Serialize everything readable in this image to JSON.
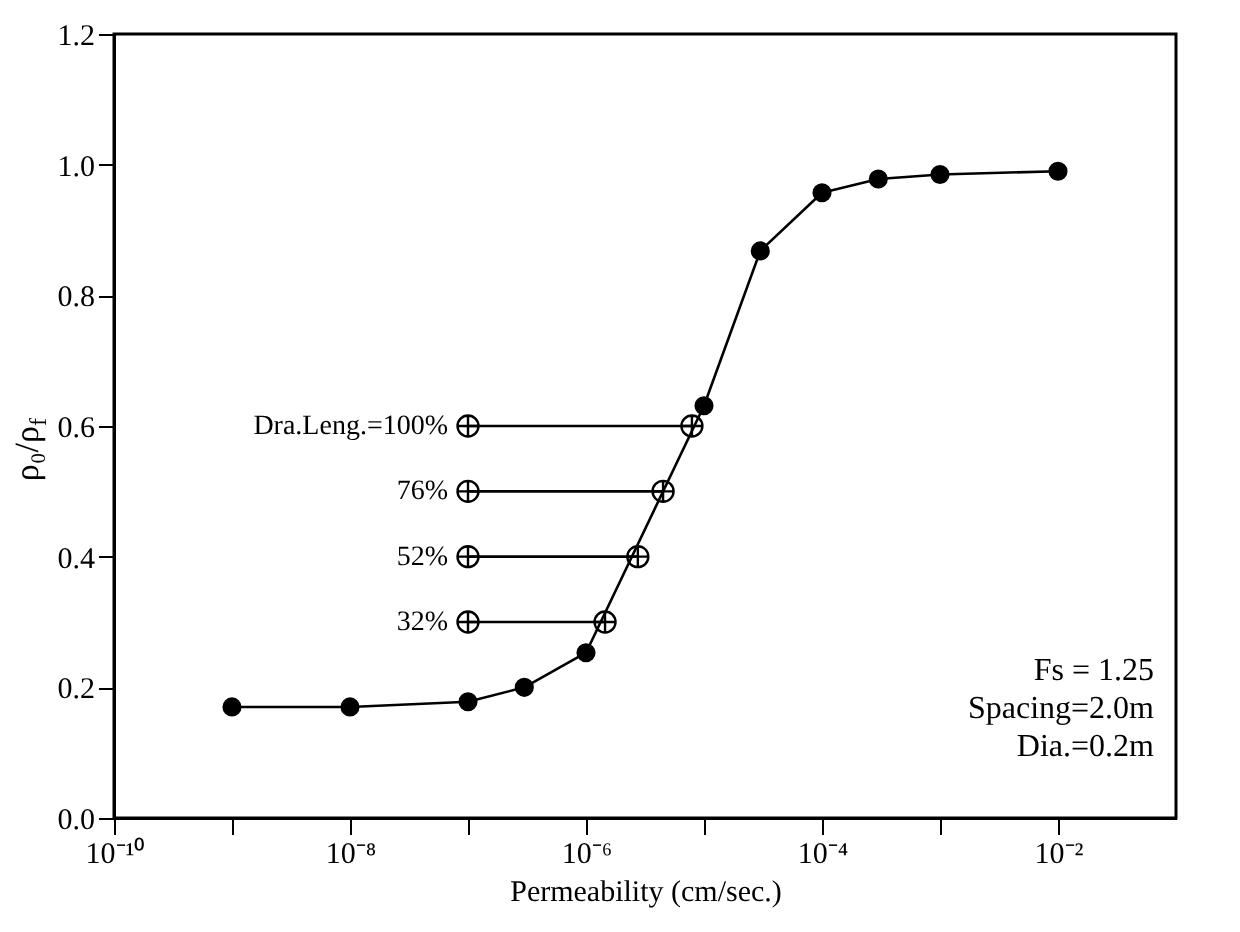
{
  "chart_data": {
    "type": "line",
    "xlabel": "Permeability (cm/sec.)",
    "ylabel": "ρ₀/ρ$_{f}$",
    "log": "x",
    "xlim": [
      1e-10,
      0.1
    ],
    "ylim": [
      0,
      1.2
    ],
    "xticks": [
      {
        "value": 1e-10,
        "label": "10⁻¹⁰"
      },
      {
        "value": 1e-09,
        "label": null
      },
      {
        "value": 1e-08,
        "label": "10⁻⁸"
      },
      {
        "value": 1e-07,
        "label": null
      },
      {
        "value": 1e-06,
        "label": "10⁻⁶"
      },
      {
        "value": 1e-05,
        "label": null
      },
      {
        "value": 0.0001,
        "label": "10⁻⁴"
      },
      {
        "value": 0.001,
        "label": null
      },
      {
        "value": 0.01,
        "label": "10⁻²"
      }
    ],
    "yticks": [
      {
        "value": 0,
        "label": "0.0"
      },
      0.2,
      0.4,
      0.6,
      0.8,
      {
        "value": 1,
        "label": "1.0"
      },
      1.2
    ],
    "grid": false,
    "series": [
      {
        "color": "#000000",
        "marker": "circle",
        "x": [
          1e-09,
          1e-08,
          1e-07,
          3e-07,
          1e-06,
          1e-05,
          3e-05,
          0.0001,
          0.0003,
          0.001,
          0.01
        ],
        "values": [
          0.17,
          0.17,
          0.178,
          0.2,
          0.253,
          0.631,
          0.868,
          0.957,
          0.978,
          0.985,
          0.99
        ]
      },
      {
        "name": "Dra.Leng.=100%",
        "color": "#000000",
        "marker": "cross",
        "x": [
          1e-07,
          7.9e-06
        ],
        "values": [
          0.6,
          0.6
        ]
      },
      {
        "name": "76%",
        "color": "#000000",
        "marker": "cross",
        "x": [
          1e-07,
          4.5e-06
        ],
        "values": [
          0.5,
          0.5
        ]
      },
      {
        "name": "52%",
        "color": "#000000",
        "marker": "cross",
        "x": [
          1e-07,
          2.75e-06
        ],
        "values": [
          0.4,
          0.4
        ]
      },
      {
        "name": "32%",
        "color": "#000000",
        "marker": "cross",
        "x": [
          1e-07,
          1.45e-06
        ],
        "values": [
          0.3,
          0.3
        ]
      }
    ],
    "annotations": [
      "Fs = 1.25",
      "Spacing=2.0m",
      "Dia.=0.2m"
    ]
  }
}
